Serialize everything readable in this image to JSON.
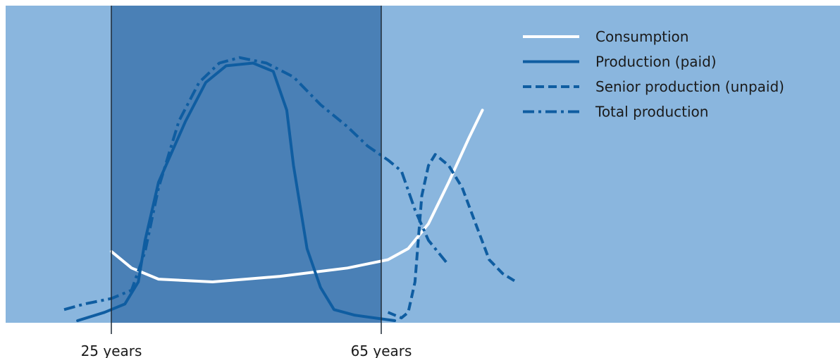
{
  "chart_data": {
    "type": "line",
    "title": "",
    "xlabel": "",
    "ylabel": "",
    "x_range": [
      18,
      86
    ],
    "y_range": [
      0,
      100
    ],
    "highlight_band": [
      25,
      65
    ],
    "x_ticks": [
      {
        "value": 25,
        "label": "25 years"
      },
      {
        "value": 65,
        "label": "65 years"
      }
    ],
    "grid": false,
    "legend_position": "top-right",
    "colors": {
      "background": "#8ab6de",
      "band": "#4a80b6",
      "white_line": "#ffffff",
      "blue_line": "#0f5da1",
      "tick_line": "#1f2a36"
    },
    "series": [
      {
        "name": "Consumption",
        "style": "solid",
        "color": "#ffffff",
        "points": [
          [
            25,
            25
          ],
          [
            28,
            19
          ],
          [
            32,
            15
          ],
          [
            40,
            14
          ],
          [
            50,
            16
          ],
          [
            60,
            19
          ],
          [
            66,
            22
          ],
          [
            69,
            26
          ],
          [
            72,
            35
          ],
          [
            75,
            50
          ],
          [
            78,
            66
          ],
          [
            80,
            76
          ]
        ]
      },
      {
        "name": "Production (paid)",
        "style": "solid",
        "color": "#0f5da1",
        "points": [
          [
            20,
            0
          ],
          [
            24,
            3
          ],
          [
            27,
            6
          ],
          [
            29,
            14
          ],
          [
            30,
            29
          ],
          [
            32,
            50
          ],
          [
            36,
            72
          ],
          [
            39,
            86
          ],
          [
            42,
            92
          ],
          [
            46,
            93
          ],
          [
            49,
            90
          ],
          [
            51,
            76
          ],
          [
            52,
            56
          ],
          [
            54,
            26
          ],
          [
            56,
            12
          ],
          [
            58,
            4
          ],
          [
            61,
            2
          ],
          [
            64,
            1
          ],
          [
            67,
            0
          ]
        ]
      },
      {
        "name": "Senior production (unpaid)",
        "style": "dashed",
        "color": "#0f5da1",
        "points": [
          [
            66,
            3
          ],
          [
            68,
            1
          ],
          [
            69,
            3
          ],
          [
            70,
            14
          ],
          [
            71,
            45
          ],
          [
            72,
            56
          ],
          [
            73,
            60
          ],
          [
            75,
            56
          ],
          [
            77,
            48
          ],
          [
            79,
            35
          ],
          [
            81,
            22
          ],
          [
            83,
            17
          ],
          [
            85,
            14
          ]
        ]
      },
      {
        "name": "Total production",
        "style": "dash-dot",
        "color": "#0f5da1",
        "points": [
          [
            18,
            4
          ],
          [
            21,
            6
          ],
          [
            25,
            8
          ],
          [
            28,
            11
          ],
          [
            30,
            25
          ],
          [
            32,
            48
          ],
          [
            35,
            72
          ],
          [
            38,
            86
          ],
          [
            41,
            93
          ],
          [
            44,
            95
          ],
          [
            48,
            93
          ],
          [
            52,
            88
          ],
          [
            56,
            78
          ],
          [
            60,
            70
          ],
          [
            63,
            63
          ],
          [
            66,
            58
          ],
          [
            68,
            54
          ],
          [
            70,
            40
          ],
          [
            72,
            29
          ],
          [
            75,
            20
          ]
        ]
      }
    ]
  }
}
